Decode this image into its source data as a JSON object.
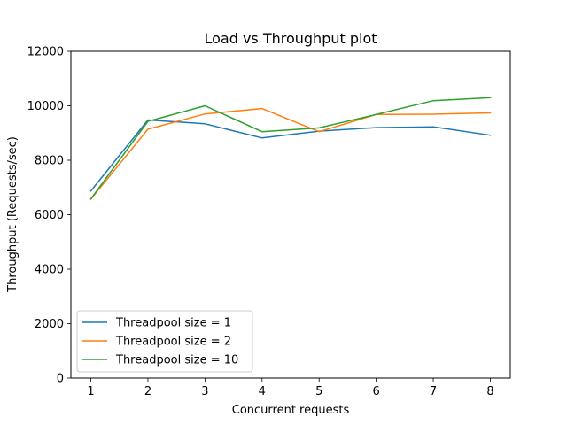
{
  "chart_data": {
    "type": "line",
    "title": "Load vs Throughput plot",
    "xlabel": "Concurrent requests",
    "ylabel": "Throughput (Requests/sec)",
    "x": [
      1,
      2,
      3,
      4,
      5,
      6,
      7,
      8
    ],
    "xticks": [
      1,
      2,
      3,
      4,
      5,
      6,
      7,
      8
    ],
    "xlim": [
      0.65,
      8.35
    ],
    "ylim": [
      0,
      12000
    ],
    "yticks": [
      0,
      2000,
      4000,
      6000,
      8000,
      10000,
      12000
    ],
    "grid": false,
    "legend_position": "lower-left",
    "series": [
      {
        "name": "Threadpool size = 1",
        "color": "#1f77b4",
        "values": [
          6870,
          9480,
          9340,
          8820,
          9070,
          9200,
          9230,
          8920
        ]
      },
      {
        "name": "Threadpool size = 2",
        "color": "#ff7f0e",
        "values": [
          6570,
          9140,
          9700,
          9900,
          9050,
          9680,
          9690,
          9740
        ]
      },
      {
        "name": "Threadpool size = 10",
        "color": "#2ca02c",
        "values": [
          6580,
          9430,
          10000,
          9050,
          9190,
          9680,
          10190,
          10300
        ]
      }
    ]
  }
}
